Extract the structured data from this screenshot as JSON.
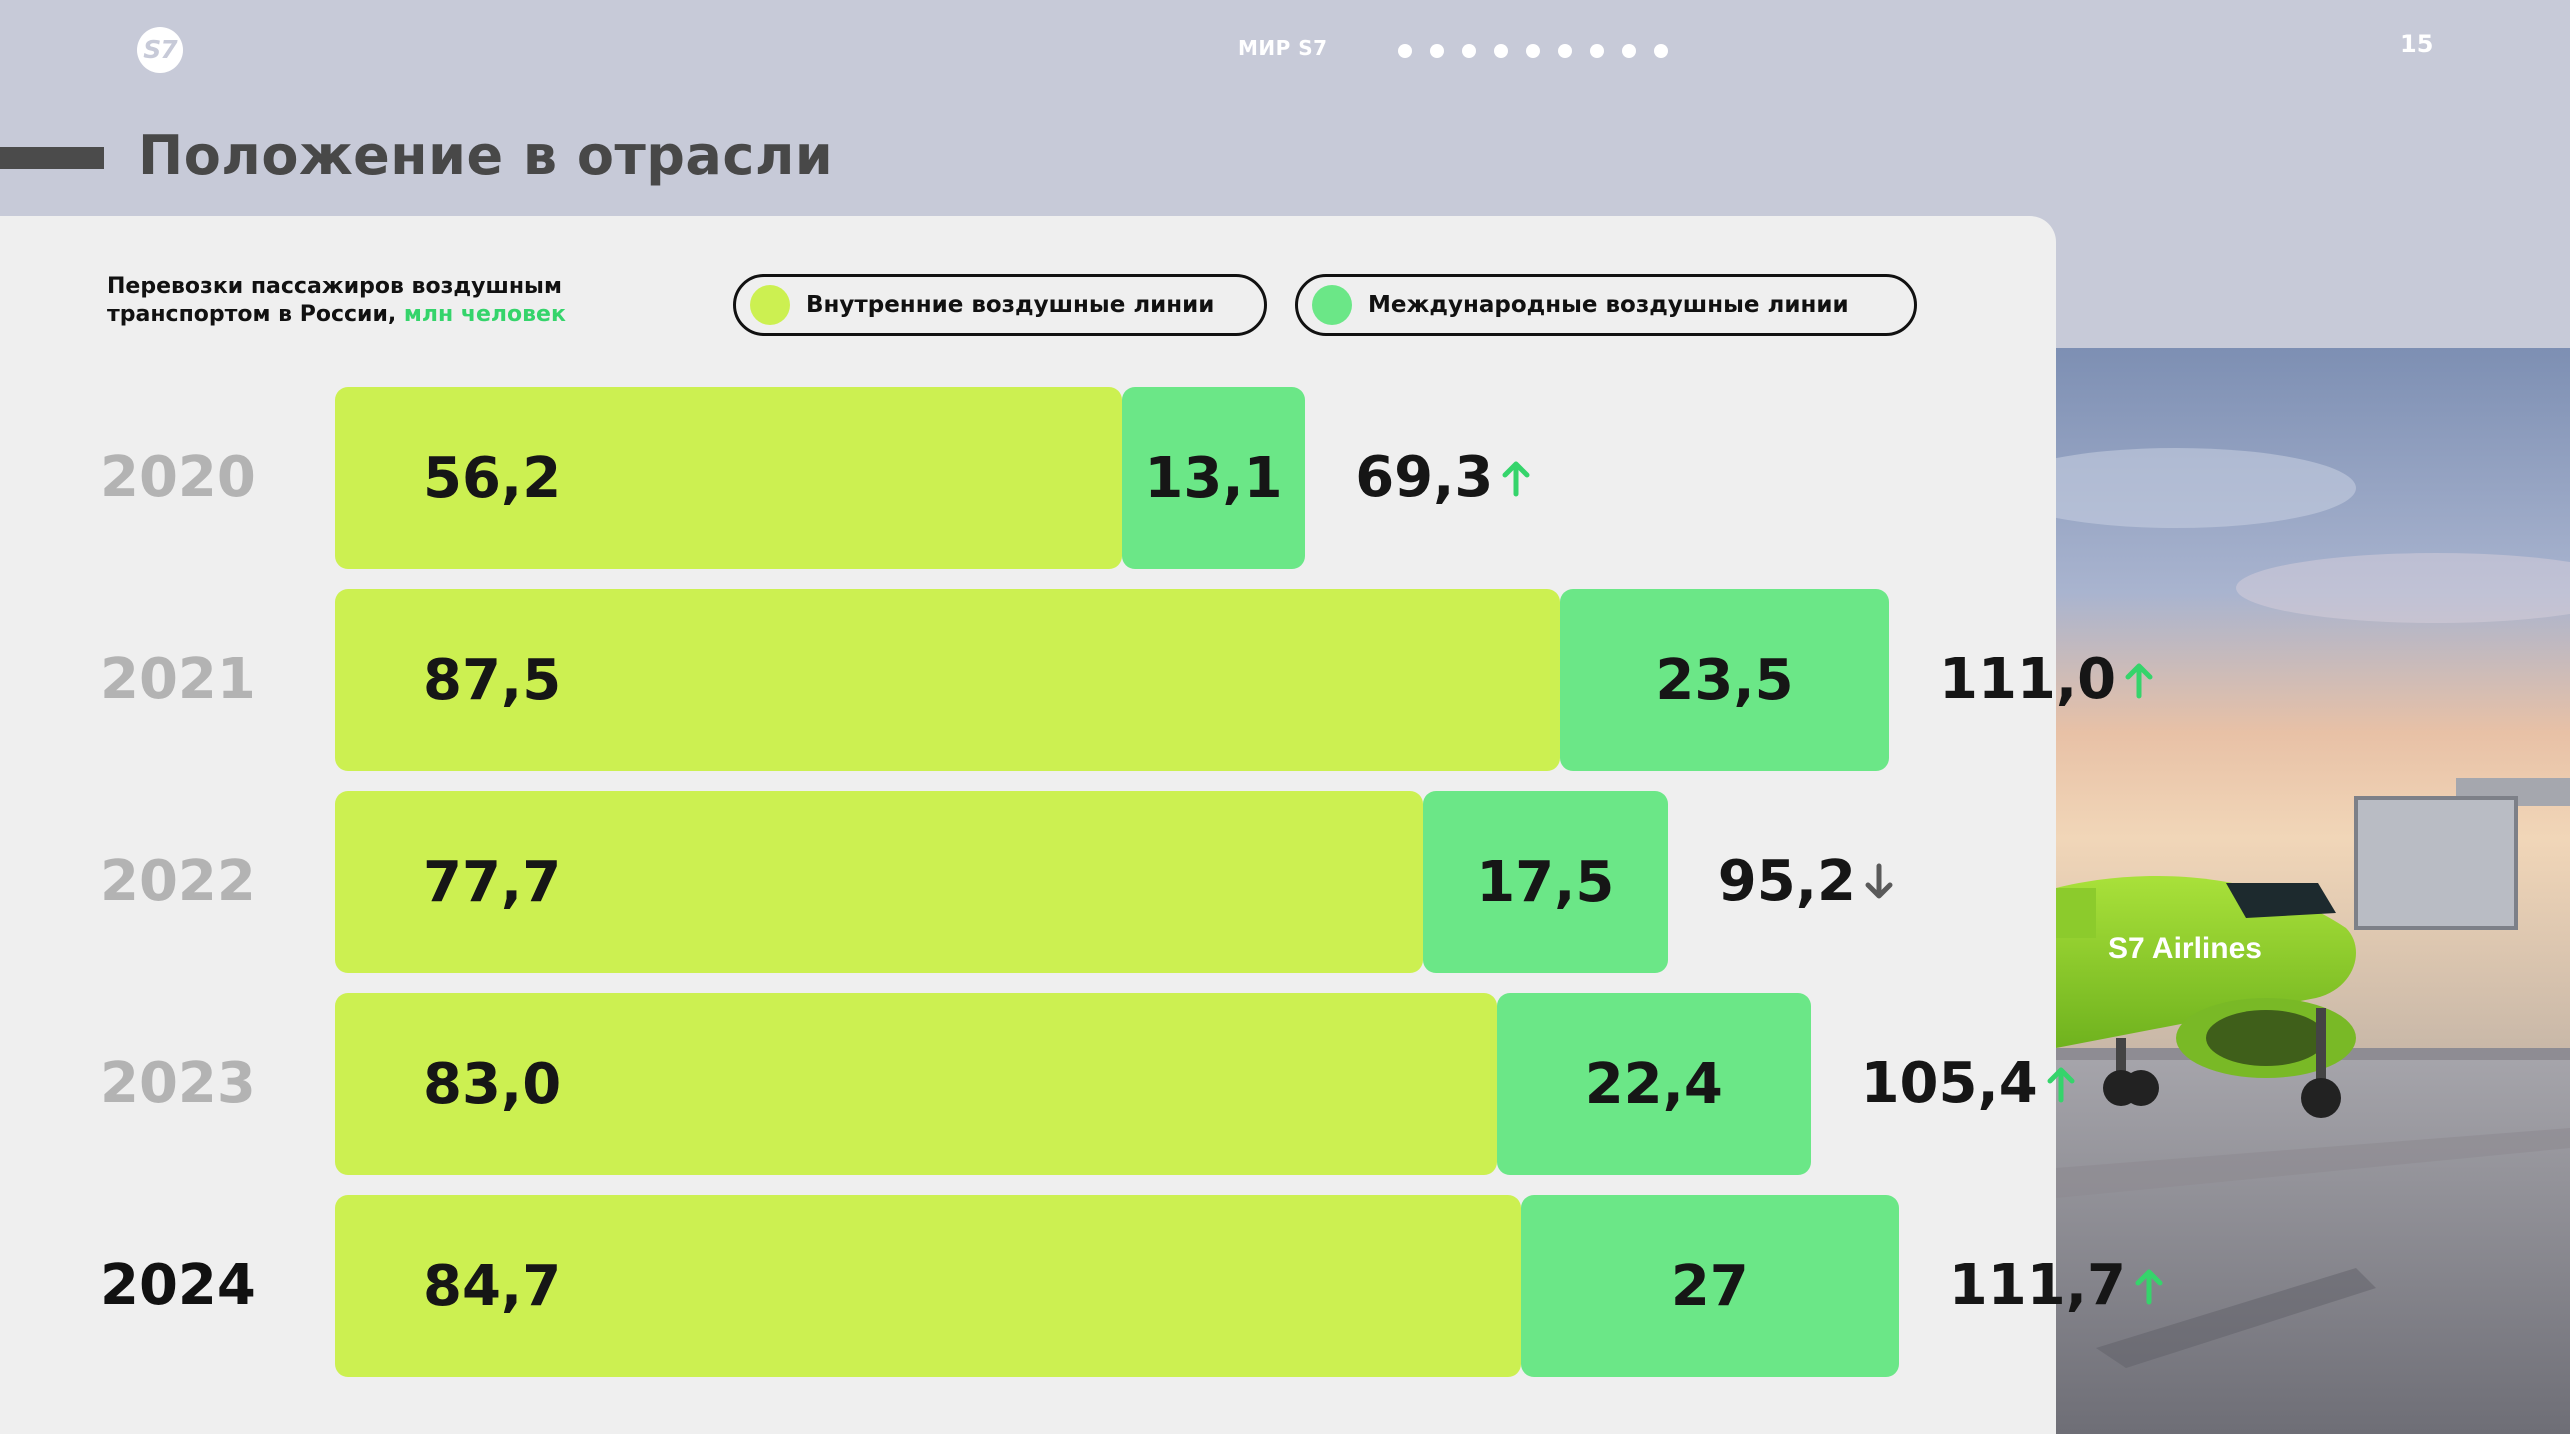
{
  "header": {
    "logo_text": "S7",
    "section_label": "МИР S7",
    "page_number": "15",
    "nav_dots": 9
  },
  "page_title": "Положение в отрасли",
  "chart_subtitle": {
    "line1": "Перевозки пассажиров воздушным",
    "line2": "транспортом в России,",
    "unit": "млн человек"
  },
  "legend": [
    {
      "label": "Внутренние воздушные линии",
      "color": "#ccf051"
    },
    {
      "label": "Международные воздушные линии",
      "color": "#6be787"
    }
  ],
  "chart_data": {
    "type": "bar",
    "orientation": "horizontal",
    "stacked": true,
    "categories": [
      "2020",
      "2021",
      "2022",
      "2023",
      "2024"
    ],
    "series": [
      {
        "name": "Внутренние воздушные линии",
        "color": "#ccf051",
        "values": [
          56.2,
          87.5,
          77.7,
          83.0,
          84.7
        ],
        "labels": [
          "56,2",
          "87,5",
          "77,7",
          "83,0",
          "84,7"
        ]
      },
      {
        "name": "Международные воздушные линии",
        "color": "#6be787",
        "values": [
          13.1,
          23.5,
          17.5,
          22.4,
          27
        ],
        "labels": [
          "13,1",
          "23,5",
          "17,5",
          "22,4",
          "27"
        ]
      }
    ],
    "totals": [
      {
        "label": "69,3",
        "value": 69.3,
        "trend": "up"
      },
      {
        "label": "111,0",
        "value": 111.0,
        "trend": "up"
      },
      {
        "label": "95,2",
        "value": 95.2,
        "trend": "down"
      },
      {
        "label": "105,4",
        "value": 105.4,
        "trend": "up"
      },
      {
        "label": "111,7",
        "value": 111.7,
        "trend": "up"
      }
    ],
    "highlight_category": "2024",
    "trend_colors": {
      "up": "#35d46b",
      "down": "#5a5a5a"
    },
    "legend_position": "top"
  },
  "photo": {
    "livery_text": "S7 Airlines"
  }
}
